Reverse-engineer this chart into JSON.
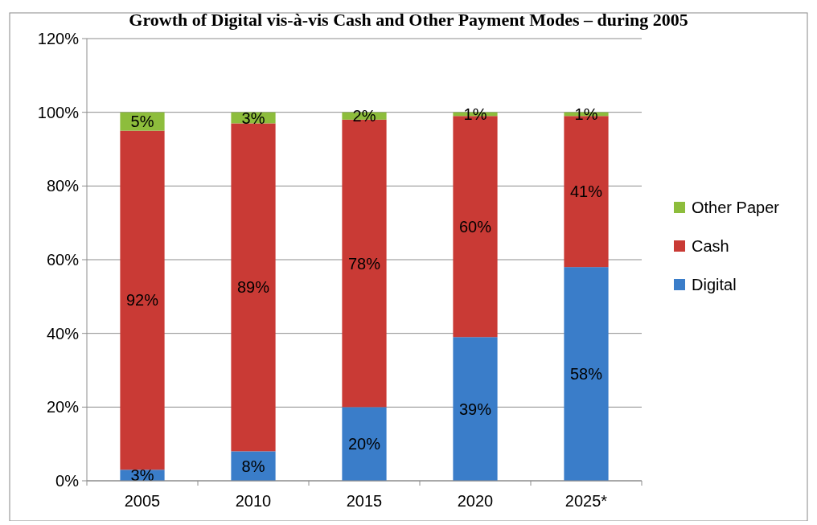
{
  "chart_data": {
    "type": "bar",
    "title": "Growth of Digital vis-à-vis Cash and Other Payment Modes – during 2005",
    "categories": [
      "2005",
      "2010",
      "2015",
      "2020",
      "2025*"
    ],
    "stacked": true,
    "legend": "right",
    "grid": "y",
    "series": [
      {
        "name": "Digital",
        "color": "#3a7dc9",
        "values": [
          3,
          8,
          20,
          39,
          58
        ],
        "value_labels": [
          "3%",
          "8%",
          "20%",
          "39%",
          "58%"
        ]
      },
      {
        "name": "Cash",
        "color": "#c93a35",
        "values": [
          92,
          89,
          78,
          60,
          41
        ],
        "value_labels": [
          "92%",
          "89%",
          "78%",
          "60%",
          "41%"
        ]
      },
      {
        "name": "Other Paper",
        "color": "#8dbd3c",
        "values": [
          5,
          3,
          2,
          1,
          1
        ],
        "value_labels": [
          "5%",
          "3%",
          "2%",
          "1%",
          "1%"
        ]
      }
    ],
    "ylim": [
      0,
      120
    ],
    "yticks": [
      {
        "value": 0,
        "label": "0%"
      },
      {
        "value": 20,
        "label": "20%"
      },
      {
        "value": 40,
        "label": "40%"
      },
      {
        "value": 60,
        "label": "60%"
      },
      {
        "value": 80,
        "label": "80%"
      },
      {
        "value": 100,
        "label": "100%"
      },
      {
        "value": 120,
        "label": "120%"
      }
    ]
  }
}
